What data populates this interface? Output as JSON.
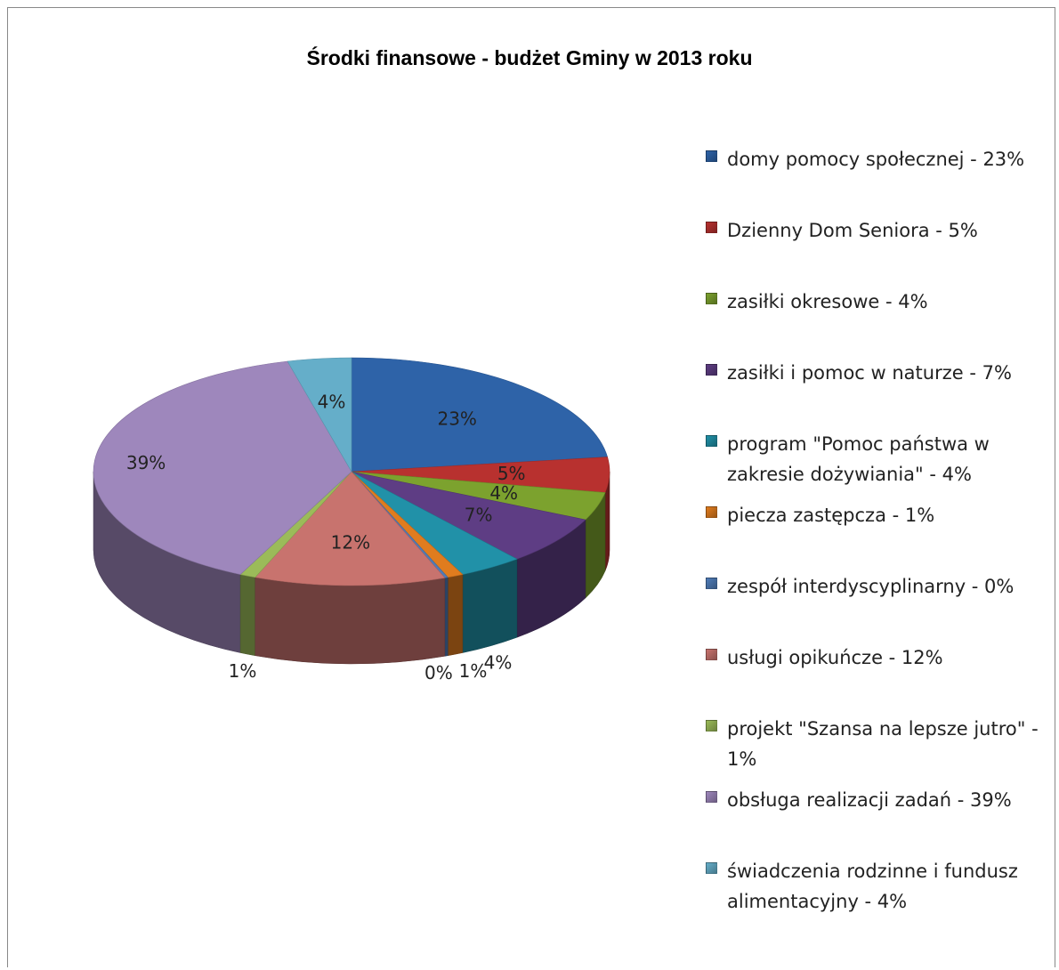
{
  "chart_data": {
    "type": "pie",
    "title": "Środki finansowe - budżet  Gminy w 2013 roku",
    "legend_position": "right",
    "slices": [
      {
        "name": "domy pomocy społecznej - 23%",
        "value": 23,
        "label": "23%",
        "color": "#2E63A8"
      },
      {
        "name": "Dzienny Dom Seniora - 5%",
        "value": 5,
        "label": "5%",
        "color": "#B8312F"
      },
      {
        "name": "zasiłki okresowe - 4%",
        "value": 4,
        "label": "4%",
        "color": "#7CA22E"
      },
      {
        "name": "zasiłki i pomoc w naturze - 7%",
        "value": 7,
        "label": "7%",
        "color": "#5E3D84"
      },
      {
        "name": "program \"Pomoc państwa w zakresie dożywiania\" - 4%",
        "value": 4,
        "label": "4%",
        "color": "#2191A8"
      },
      {
        "name": "piecza zastępcza - 1%",
        "value": 1,
        "label": "1%",
        "color": "#E07C1E"
      },
      {
        "name": "zespół interdyscyplinarny - 0%",
        "value": 0.2,
        "label": "0%",
        "color": "#4F7CB8"
      },
      {
        "name": "usługi opikuńcze - 12%",
        "value": 12,
        "label": "12%",
        "color": "#C8736E"
      },
      {
        "name": "projekt \"Szansa na lepsze jutro\" - 1%",
        "value": 1,
        "label": "1%",
        "color": "#9BBB59"
      },
      {
        "name": "obsługa realizacji zadań - 39%",
        "value": 39,
        "label": "39%",
        "color": "#9E87BC"
      },
      {
        "name": "świadczenia rodzinne i fundusz alimentacyjny - 4%",
        "value": 4,
        "label": "4%",
        "color": "#65AEC9"
      }
    ]
  }
}
